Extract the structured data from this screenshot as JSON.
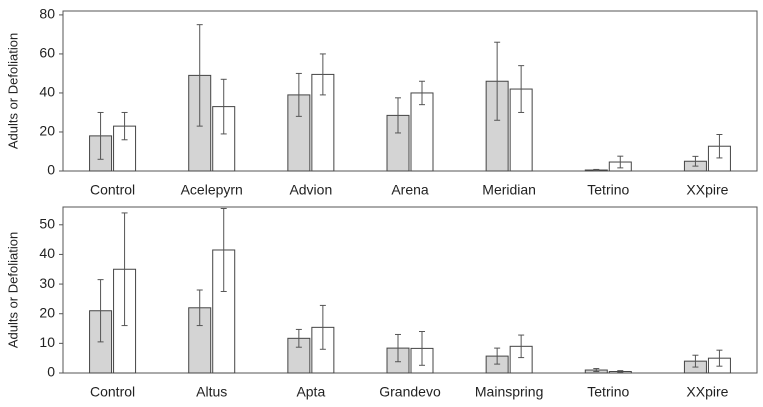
{
  "chart_data": [
    {
      "type": "bar",
      "y_label": "Adults or Defoliation",
      "categories": [
        "Control",
        "Acelepyrn",
        "Advion",
        "Arena",
        "Meridian",
        "Tetrino",
        "XXpire"
      ],
      "series": [
        {
          "color": "#d4d4d4",
          "values": [
            18,
            49,
            39,
            28.5,
            46,
            0.5,
            5
          ],
          "errors": [
            12,
            26,
            11,
            9,
            20,
            0.3,
            2.5
          ]
        },
        {
          "color": "#ffffff",
          "values": [
            23,
            33,
            49.5,
            40,
            42,
            4.6,
            12.7
          ],
          "errors": [
            7,
            14,
            10.5,
            6,
            12,
            3,
            6
          ]
        }
      ],
      "ylim": [
        0,
        82
      ],
      "yticks": [
        0,
        20,
        40,
        60,
        80
      ]
    },
    {
      "type": "bar",
      "y_label": "Adults or Defoliation",
      "categories": [
        "Control",
        "Altus",
        "Apta",
        "Grandevo",
        "Mainspring",
        "Tetrino",
        "XXpire"
      ],
      "series": [
        {
          "color": "#d4d4d4",
          "values": [
            21,
            22,
            11.7,
            8.4,
            5.7,
            1,
            4
          ],
          "errors": [
            10.5,
            6,
            3,
            4.6,
            2.7,
            0.5,
            2
          ]
        },
        {
          "color": "#ffffff",
          "values": [
            35,
            41.5,
            15.4,
            8.3,
            9,
            0.5,
            5
          ],
          "errors": [
            19,
            14,
            7.4,
            5.7,
            3.8,
            0.3,
            2.7
          ]
        }
      ],
      "ylim": [
        0,
        56
      ],
      "yticks": [
        0,
        10,
        20,
        30,
        40,
        50
      ]
    }
  ]
}
